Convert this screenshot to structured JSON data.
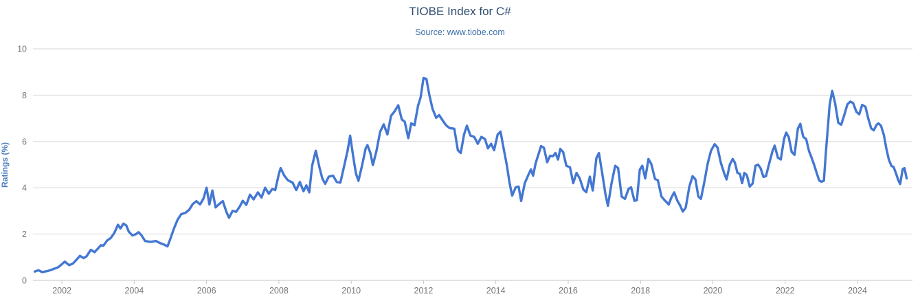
{
  "header": {
    "title": "TIOBE Index for C#",
    "subtitle": "Source: www.tiobe.com"
  },
  "colors": {
    "line": "#4377d2",
    "title": "#2e4e6f",
    "subtitle": "#3d6ea8",
    "y_axis_title": "#4a7ebc",
    "tick_label": "#757575",
    "gridline": "#d6d6d6",
    "axis_line": "#c6c6c6"
  },
  "chart_data": {
    "type": "line",
    "title": "TIOBE Index for C#",
    "subtitle": "Source: www.tiobe.com",
    "xlabel": "",
    "ylabel": "Ratings (%)",
    "ylim": [
      0,
      10
    ],
    "xlim": [
      2001.2,
      2025.52
    ],
    "y_ticks": [
      0,
      2,
      4,
      6,
      8,
      10
    ],
    "x_ticks": [
      2002,
      2004,
      2006,
      2008,
      2010,
      2012,
      2014,
      2016,
      2018,
      2020,
      2022,
      2024
    ],
    "grid": "horizontal-only",
    "legend": "none",
    "series": [
      {
        "name": "C#",
        "color": "#4377d2",
        "points": [
          [
            2001.25,
            0.38
          ],
          [
            2001.35,
            0.44
          ],
          [
            2001.45,
            0.36
          ],
          [
            2001.6,
            0.4
          ],
          [
            2001.75,
            0.48
          ],
          [
            2001.9,
            0.57
          ],
          [
            2002.0,
            0.7
          ],
          [
            2002.08,
            0.81
          ],
          [
            2002.2,
            0.66
          ],
          [
            2002.3,
            0.72
          ],
          [
            2002.42,
            0.92
          ],
          [
            2002.5,
            1.06
          ],
          [
            2002.6,
            0.96
          ],
          [
            2002.68,
            1.04
          ],
          [
            2002.8,
            1.32
          ],
          [
            2002.9,
            1.22
          ],
          [
            2003.0,
            1.38
          ],
          [
            2003.08,
            1.52
          ],
          [
            2003.15,
            1.5
          ],
          [
            2003.25,
            1.72
          ],
          [
            2003.35,
            1.83
          ],
          [
            2003.45,
            2.05
          ],
          [
            2003.55,
            2.4
          ],
          [
            2003.62,
            2.24
          ],
          [
            2003.7,
            2.45
          ],
          [
            2003.78,
            2.37
          ],
          [
            2003.85,
            2.1
          ],
          [
            2003.95,
            1.94
          ],
          [
            2004.05,
            2.0
          ],
          [
            2004.12,
            2.08
          ],
          [
            2004.2,
            1.95
          ],
          [
            2004.3,
            1.7
          ],
          [
            2004.45,
            1.66
          ],
          [
            2004.6,
            1.7
          ],
          [
            2004.7,
            1.62
          ],
          [
            2004.82,
            1.55
          ],
          [
            2004.92,
            1.47
          ],
          [
            2005.0,
            1.8
          ],
          [
            2005.1,
            2.25
          ],
          [
            2005.2,
            2.62
          ],
          [
            2005.3,
            2.86
          ],
          [
            2005.42,
            2.92
          ],
          [
            2005.52,
            3.05
          ],
          [
            2005.62,
            3.3
          ],
          [
            2005.72,
            3.42
          ],
          [
            2005.82,
            3.28
          ],
          [
            2005.92,
            3.55
          ],
          [
            2006.0,
            4.0
          ],
          [
            2006.08,
            3.28
          ],
          [
            2006.16,
            3.88
          ],
          [
            2006.25,
            3.15
          ],
          [
            2006.35,
            3.3
          ],
          [
            2006.45,
            3.42
          ],
          [
            2006.55,
            2.95
          ],
          [
            2006.62,
            2.7
          ],
          [
            2006.72,
            3.0
          ],
          [
            2006.82,
            2.96
          ],
          [
            2006.92,
            3.2
          ],
          [
            2007.0,
            3.44
          ],
          [
            2007.1,
            3.26
          ],
          [
            2007.2,
            3.7
          ],
          [
            2007.3,
            3.5
          ],
          [
            2007.42,
            3.8
          ],
          [
            2007.52,
            3.58
          ],
          [
            2007.62,
            4.0
          ],
          [
            2007.72,
            3.74
          ],
          [
            2007.82,
            3.95
          ],
          [
            2007.9,
            3.9
          ],
          [
            2008.0,
            4.6
          ],
          [
            2008.05,
            4.85
          ],
          [
            2008.15,
            4.52
          ],
          [
            2008.25,
            4.32
          ],
          [
            2008.38,
            4.22
          ],
          [
            2008.48,
            3.9
          ],
          [
            2008.58,
            4.25
          ],
          [
            2008.68,
            3.85
          ],
          [
            2008.76,
            4.1
          ],
          [
            2008.84,
            3.8
          ],
          [
            2008.92,
            4.95
          ],
          [
            2009.02,
            5.6
          ],
          [
            2009.12,
            4.9
          ],
          [
            2009.2,
            4.4
          ],
          [
            2009.28,
            4.17
          ],
          [
            2009.38,
            4.48
          ],
          [
            2009.5,
            4.52
          ],
          [
            2009.6,
            4.25
          ],
          [
            2009.7,
            4.22
          ],
          [
            2009.8,
            4.9
          ],
          [
            2009.9,
            5.6
          ],
          [
            2009.97,
            6.25
          ],
          [
            2010.05,
            5.4
          ],
          [
            2010.13,
            4.62
          ],
          [
            2010.2,
            4.3
          ],
          [
            2010.3,
            4.95
          ],
          [
            2010.4,
            5.7
          ],
          [
            2010.45,
            5.84
          ],
          [
            2010.53,
            5.5
          ],
          [
            2010.6,
            4.98
          ],
          [
            2010.7,
            5.6
          ],
          [
            2010.8,
            6.42
          ],
          [
            2010.9,
            6.74
          ],
          [
            2011.0,
            6.3
          ],
          [
            2011.1,
            7.1
          ],
          [
            2011.2,
            7.3
          ],
          [
            2011.3,
            7.56
          ],
          [
            2011.4,
            6.95
          ],
          [
            2011.48,
            6.85
          ],
          [
            2011.58,
            6.14
          ],
          [
            2011.66,
            6.78
          ],
          [
            2011.75,
            6.7
          ],
          [
            2011.85,
            7.55
          ],
          [
            2011.92,
            7.9
          ],
          [
            2012.0,
            8.74
          ],
          [
            2012.08,
            8.7
          ],
          [
            2012.16,
            8.02
          ],
          [
            2012.25,
            7.4
          ],
          [
            2012.35,
            7.02
          ],
          [
            2012.43,
            7.14
          ],
          [
            2012.52,
            6.93
          ],
          [
            2012.62,
            6.7
          ],
          [
            2012.72,
            6.58
          ],
          [
            2012.85,
            6.55
          ],
          [
            2012.95,
            5.62
          ],
          [
            2013.03,
            5.5
          ],
          [
            2013.12,
            6.3
          ],
          [
            2013.2,
            6.68
          ],
          [
            2013.3,
            6.25
          ],
          [
            2013.4,
            6.2
          ],
          [
            2013.5,
            5.9
          ],
          [
            2013.6,
            6.2
          ],
          [
            2013.7,
            6.1
          ],
          [
            2013.78,
            5.7
          ],
          [
            2013.87,
            5.9
          ],
          [
            2013.95,
            5.62
          ],
          [
            2014.05,
            6.3
          ],
          [
            2014.13,
            6.42
          ],
          [
            2014.22,
            5.65
          ],
          [
            2014.3,
            5.0
          ],
          [
            2014.38,
            4.2
          ],
          [
            2014.45,
            3.66
          ],
          [
            2014.55,
            4.02
          ],
          [
            2014.63,
            4.05
          ],
          [
            2014.7,
            3.43
          ],
          [
            2014.8,
            4.2
          ],
          [
            2014.9,
            4.56
          ],
          [
            2014.97,
            4.79
          ],
          [
            2015.03,
            4.52
          ],
          [
            2015.1,
            5.06
          ],
          [
            2015.18,
            5.45
          ],
          [
            2015.25,
            5.8
          ],
          [
            2015.33,
            5.72
          ],
          [
            2015.42,
            5.1
          ],
          [
            2015.5,
            5.38
          ],
          [
            2015.58,
            5.36
          ],
          [
            2015.65,
            5.5
          ],
          [
            2015.72,
            5.22
          ],
          [
            2015.78,
            5.68
          ],
          [
            2015.86,
            5.54
          ],
          [
            2015.95,
            4.95
          ],
          [
            2016.05,
            4.88
          ],
          [
            2016.14,
            4.2
          ],
          [
            2016.23,
            4.64
          ],
          [
            2016.32,
            4.4
          ],
          [
            2016.42,
            3.92
          ],
          [
            2016.5,
            3.81
          ],
          [
            2016.6,
            4.48
          ],
          [
            2016.68,
            3.88
          ],
          [
            2016.78,
            5.28
          ],
          [
            2016.85,
            5.5
          ],
          [
            2016.95,
            4.55
          ],
          [
            2017.03,
            3.72
          ],
          [
            2017.1,
            3.22
          ],
          [
            2017.2,
            4.2
          ],
          [
            2017.3,
            4.95
          ],
          [
            2017.38,
            4.85
          ],
          [
            2017.48,
            3.62
          ],
          [
            2017.57,
            3.52
          ],
          [
            2017.67,
            3.95
          ],
          [
            2017.74,
            4.02
          ],
          [
            2017.83,
            3.44
          ],
          [
            2017.9,
            3.46
          ],
          [
            2017.98,
            4.78
          ],
          [
            2018.05,
            4.95
          ],
          [
            2018.13,
            4.4
          ],
          [
            2018.22,
            5.24
          ],
          [
            2018.3,
            5.02
          ],
          [
            2018.4,
            4.38
          ],
          [
            2018.48,
            4.32
          ],
          [
            2018.58,
            3.62
          ],
          [
            2018.68,
            3.44
          ],
          [
            2018.78,
            3.28
          ],
          [
            2018.85,
            3.56
          ],
          [
            2018.93,
            3.8
          ],
          [
            2019.02,
            3.44
          ],
          [
            2019.1,
            3.22
          ],
          [
            2019.17,
            2.97
          ],
          [
            2019.25,
            3.14
          ],
          [
            2019.35,
            4.05
          ],
          [
            2019.44,
            4.5
          ],
          [
            2019.52,
            4.36
          ],
          [
            2019.6,
            3.62
          ],
          [
            2019.67,
            3.52
          ],
          [
            2019.76,
            4.2
          ],
          [
            2019.86,
            5.06
          ],
          [
            2019.95,
            5.6
          ],
          [
            2020.05,
            5.88
          ],
          [
            2020.13,
            5.74
          ],
          [
            2020.22,
            5.08
          ],
          [
            2020.32,
            4.6
          ],
          [
            2020.38,
            4.36
          ],
          [
            2020.47,
            5.0
          ],
          [
            2020.55,
            5.24
          ],
          [
            2020.61,
            5.08
          ],
          [
            2020.68,
            4.64
          ],
          [
            2020.75,
            4.6
          ],
          [
            2020.81,
            4.2
          ],
          [
            2020.87,
            4.64
          ],
          [
            2020.94,
            4.55
          ],
          [
            2021.02,
            4.05
          ],
          [
            2021.1,
            4.18
          ],
          [
            2021.18,
            4.95
          ],
          [
            2021.25,
            5.0
          ],
          [
            2021.32,
            4.85
          ],
          [
            2021.4,
            4.47
          ],
          [
            2021.47,
            4.5
          ],
          [
            2021.56,
            5.06
          ],
          [
            2021.65,
            5.58
          ],
          [
            2021.71,
            5.82
          ],
          [
            2021.8,
            5.3
          ],
          [
            2021.88,
            5.22
          ],
          [
            2021.97,
            6.12
          ],
          [
            2022.03,
            6.38
          ],
          [
            2022.1,
            6.18
          ],
          [
            2022.18,
            5.55
          ],
          [
            2022.26,
            5.42
          ],
          [
            2022.35,
            6.55
          ],
          [
            2022.42,
            6.76
          ],
          [
            2022.5,
            6.2
          ],
          [
            2022.58,
            6.1
          ],
          [
            2022.66,
            5.58
          ],
          [
            2022.73,
            5.3
          ],
          [
            2022.8,
            5.0
          ],
          [
            2022.87,
            4.65
          ],
          [
            2022.94,
            4.32
          ],
          [
            2023.0,
            4.26
          ],
          [
            2023.07,
            4.3
          ],
          [
            2023.13,
            5.6
          ],
          [
            2023.18,
            6.57
          ],
          [
            2023.23,
            7.58
          ],
          [
            2023.3,
            8.18
          ],
          [
            2023.38,
            7.66
          ],
          [
            2023.47,
            6.8
          ],
          [
            2023.55,
            6.72
          ],
          [
            2023.64,
            7.17
          ],
          [
            2023.72,
            7.6
          ],
          [
            2023.8,
            7.72
          ],
          [
            2023.88,
            7.66
          ],
          [
            2023.97,
            7.28
          ],
          [
            2024.05,
            7.17
          ],
          [
            2024.13,
            7.58
          ],
          [
            2024.22,
            7.5
          ],
          [
            2024.3,
            6.98
          ],
          [
            2024.38,
            6.56
          ],
          [
            2024.45,
            6.48
          ],
          [
            2024.53,
            6.72
          ],
          [
            2024.58,
            6.78
          ],
          [
            2024.65,
            6.68
          ],
          [
            2024.73,
            6.28
          ],
          [
            2024.8,
            5.68
          ],
          [
            2024.87,
            5.2
          ],
          [
            2024.94,
            4.94
          ],
          [
            2025.0,
            4.9
          ],
          [
            2025.07,
            4.6
          ],
          [
            2025.13,
            4.32
          ],
          [
            2025.18,
            4.16
          ],
          [
            2025.25,
            4.8
          ],
          [
            2025.3,
            4.85
          ],
          [
            2025.36,
            4.4
          ]
        ]
      }
    ]
  }
}
